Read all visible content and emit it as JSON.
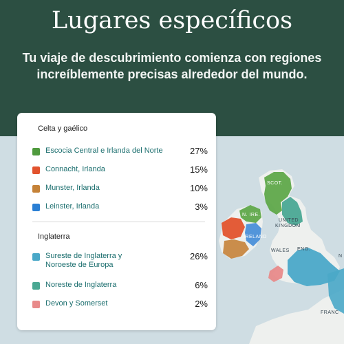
{
  "header": {
    "title": "Lugares específicos",
    "subtitle": "Tu viaje de descubrimiento comienza con regiones increíblemente precisas alrededor del mundo."
  },
  "legend": {
    "groups": [
      {
        "title": "Celta y gaélico",
        "items": [
          {
            "label": "Escocia Central e Irlanda del Norte",
            "percent": "27%",
            "color": "#4f9a3e"
          },
          {
            "label": "Connacht, Irlanda",
            "percent": "15%",
            "color": "#e2532d"
          },
          {
            "label": "Munster, Irlanda",
            "percent": "10%",
            "color": "#c58238"
          },
          {
            "label": "Leinster, Irlanda",
            "percent": "3%",
            "color": "#2a7fd4"
          }
        ]
      },
      {
        "title": "Inglaterra",
        "items": [
          {
            "label": "Sureste de Inglaterra y Noroeste de Europa",
            "percent": "26%",
            "color": "#4aa8c8"
          },
          {
            "label": "Noreste de Inglaterra",
            "percent": "6%",
            "color": "#4aa893"
          },
          {
            "label": "Devon y Somerset",
            "percent": "2%",
            "color": "#e88a8a"
          }
        ]
      }
    ]
  },
  "map": {
    "labels": {
      "scotland": "SCOT.",
      "northern_ireland": "N. IRE.",
      "ireland": "IRELAND",
      "uk_line1": "UNITED",
      "uk_line2": "KINGDOM",
      "wales": "WALES",
      "england": "ENG.",
      "france": "FRANC",
      "edge": "N"
    },
    "colors": {
      "sea": "#cfdde3",
      "land": "#eef0ee",
      "header_bg": "#2c4f42"
    }
  }
}
